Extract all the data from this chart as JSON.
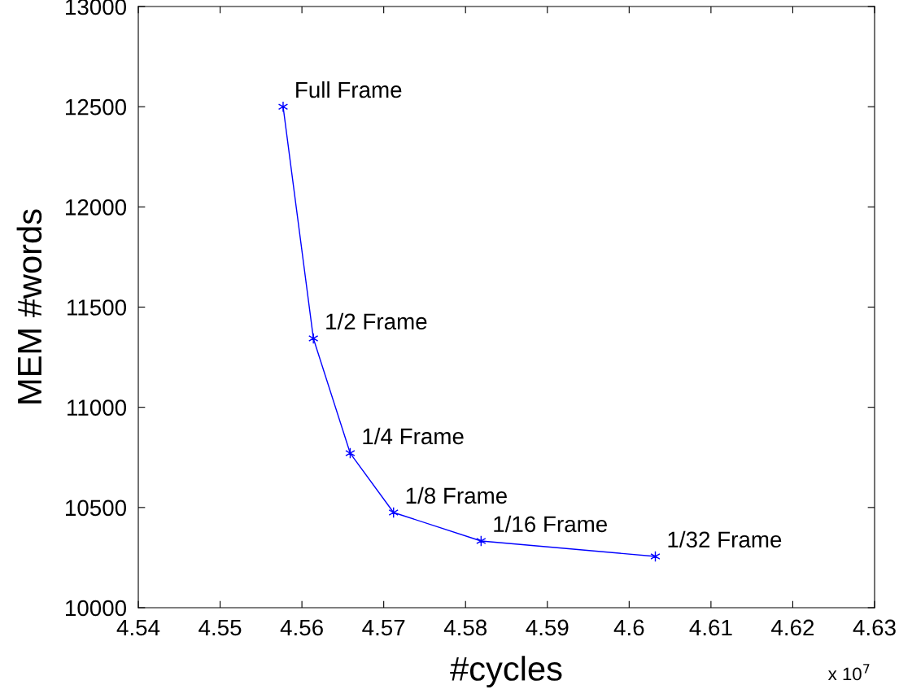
{
  "chart_data": {
    "type": "line",
    "xlabel": "#cycles",
    "ylabel": "MEM #words",
    "x": [
      4.5577,
      4.5614,
      4.5659,
      4.5712,
      4.5819,
      4.6032
    ],
    "series": [
      {
        "color": "#0000ff",
        "values": [
          12500,
          11344,
          10771,
          10475,
          10333,
          10256
        ]
      }
    ],
    "marker": "cross",
    "line_style": "solid",
    "grid": false,
    "legend": false,
    "xlim": [
      4.54,
      4.63
    ],
    "xticks": [
      4.54,
      4.55,
      4.56,
      4.57,
      4.58,
      4.59,
      4.6,
      4.61,
      4.62,
      4.63
    ],
    "ylim": [
      10000,
      13000
    ],
    "yticks": [
      10000,
      10500,
      11000,
      11500,
      12000,
      12500,
      13000
    ],
    "annotations": [
      {
        "text": "Full Frame",
        "x": 4.5577,
        "y": 12500
      },
      {
        "text": "1/2 Frame",
        "x": 4.5614,
        "y": 11344
      },
      {
        "text": "1/4 Frame",
        "x": 4.5659,
        "y": 10771
      },
      {
        "text": "1/8 Frame",
        "x": 4.5712,
        "y": 10475
      },
      {
        "text": "1/16 Frame",
        "x": 4.5819,
        "y": 10333
      },
      {
        "text": "1/32 Frame",
        "x": 4.6032,
        "y": 10256
      },
      "x 10$^{7}$"
    ]
  }
}
